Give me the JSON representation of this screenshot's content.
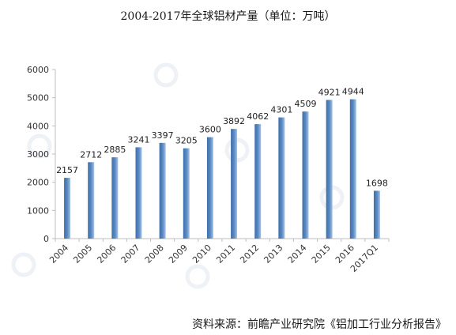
{
  "chart_data": {
    "type": "bar",
    "title": "2004-2017年全球铝材产量（单位：万吨）",
    "categories": [
      "2004",
      "2005",
      "2006",
      "2007",
      "2008",
      "2009",
      "2010",
      "2011",
      "2012",
      "2013",
      "2014",
      "2015",
      "2016",
      "2017Q1"
    ],
    "values": [
      2157,
      2712,
      2885,
      3241,
      3397,
      3205,
      3600,
      3892,
      4062,
      4301,
      4509,
      4921,
      4944,
      1698
    ],
    "xlabel": "",
    "ylabel": "",
    "ylim": [
      0,
      6000
    ],
    "yticks": [
      0,
      1000,
      2000,
      3000,
      4000,
      5000,
      6000
    ],
    "grid": false,
    "legend": "none",
    "bar_color": "#4f7fb8",
    "bar_highlight": "#a9c3e3"
  },
  "source_note": "资料来源：前瞻产业研究院《铝加工行业分析报告》"
}
